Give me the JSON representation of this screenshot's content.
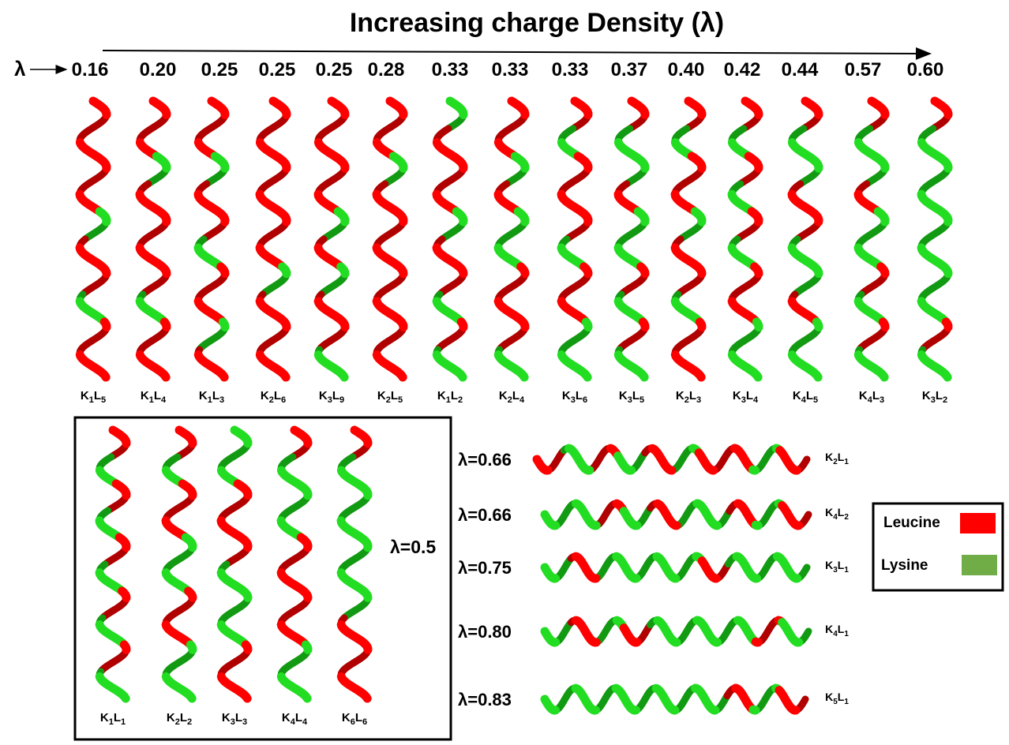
{
  "title": "Increasing charge Density (λ)",
  "lambda_symbol": "λ",
  "colors": {
    "leucine": "#ff0000",
    "lysine": "#22dd22",
    "leucine_swatch": "#ff0000",
    "lysine_swatch": "#70ad47",
    "leucine_dark": "#b00000",
    "lysine_dark": "#129a12"
  },
  "top_row": [
    {
      "lambda": "0.16",
      "name": "K1L5",
      "k": "1",
      "l": "5",
      "pattern": "RRRRGRRGRR"
    },
    {
      "lambda": "0.20",
      "name": "K1L4",
      "k": "1",
      "l": "4",
      "pattern": "RRGRRRRGRR"
    },
    {
      "lambda": "0.25",
      "name": "K1L3",
      "k": "1",
      "l": "3",
      "pattern": "RRGRRGRRGR"
    },
    {
      "lambda": "0.25",
      "name": "K2L6",
      "k": "2",
      "l": "6",
      "pattern": "RRRRRRGRRR"
    },
    {
      "lambda": "0.25",
      "name": "K3L9",
      "k": "3",
      "l": "9",
      "pattern": "RRRRGRGRRG"
    },
    {
      "lambda": "0.28",
      "name": "K2L5",
      "k": "2",
      "l": "5",
      "pattern": "RRGRRRRRRR"
    },
    {
      "lambda": "0.33",
      "name": "K1L2",
      "k": "1",
      "l": "2",
      "pattern": "GRRRGRRGRG"
    },
    {
      "lambda": "0.33",
      "name": "K2L4",
      "k": "2",
      "l": "4",
      "pattern": "RRGRGGRRRG"
    },
    {
      "lambda": "0.33",
      "name": "K3L6",
      "k": "3",
      "l": "6",
      "pattern": "RGRRRGRRGG"
    },
    {
      "lambda": "0.37",
      "name": "K3L5",
      "k": "3",
      "l": "5",
      "pattern": "RGGRGGRGRG"
    },
    {
      "lambda": "0.40",
      "name": "K2L3",
      "k": "2",
      "l": "3",
      "pattern": "RGRRGRRGRR"
    },
    {
      "lambda": "0.42",
      "name": "K3L4",
      "k": "3",
      "l": "4",
      "pattern": "RGRGRGRRGG"
    },
    {
      "lambda": "0.44",
      "name": "K4L5",
      "k": "4",
      "l": "5",
      "pattern": "RGGRRGGRGG"
    },
    {
      "lambda": "0.57",
      "name": "K4L3",
      "k": "4",
      "l": "3",
      "pattern": "RGGRGGRGRG"
    },
    {
      "lambda": "0.60",
      "name": "K3L2",
      "k": "3",
      "l": "2",
      "pattern": "RGGGGGGGRG"
    }
  ],
  "box_lambda": "λ=0.5",
  "box_row": [
    {
      "name": "K1L1",
      "k": "1",
      "l": "1",
      "pattern": "RGRGRGRGRG"
    },
    {
      "name": "K2L2",
      "k": "2",
      "l": "2",
      "pattern": "RGRRGGRRGG"
    },
    {
      "name": "K3L3",
      "k": "3",
      "l": "3",
      "pattern": "GGRRRGGGRR"
    },
    {
      "name": "K4L4",
      "k": "4",
      "l": "4",
      "pattern": "RGGGRRRRGG"
    },
    {
      "name": "K6L6",
      "k": "6",
      "l": "6",
      "pattern": "RGGGGGGRRR"
    }
  ],
  "horizontal": [
    {
      "lambda_label": "λ=0.66",
      "name": "K2L1",
      "k": "2",
      "l": "1",
      "pattern": "RGRGRGRRGR"
    },
    {
      "lambda_label": "λ=0.66",
      "name": "K4L2",
      "k": "4",
      "l": "2",
      "pattern": "GGRGRGGRGR"
    },
    {
      "lambda_label": "λ=0.75",
      "name": "K3L1",
      "k": "3",
      "l": "1",
      "pattern": "GRGGGGRGGG"
    },
    {
      "lambda_label": "λ=0.80",
      "name": "K4L1",
      "k": "4",
      "l": "1",
      "pattern": "GRGRGGGGRG"
    },
    {
      "lambda_label": "λ=0.83",
      "name": "K5L1",
      "k": "5",
      "l": "1",
      "pattern": "GGGGGGGRGR"
    }
  ],
  "legend": [
    {
      "label": "Leucine",
      "color_key": "leucine_swatch"
    },
    {
      "label": "Lysine",
      "color_key": "lysine_swatch"
    }
  ]
}
